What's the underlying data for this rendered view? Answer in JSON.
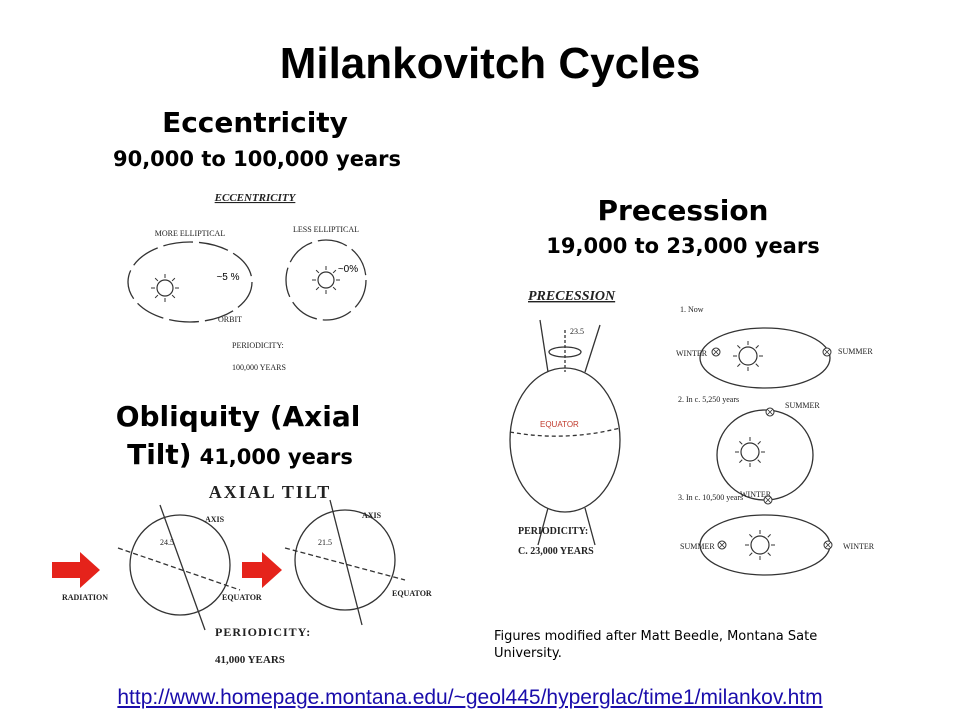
{
  "title": "Milankovitch Cycles",
  "eccentricity": {
    "heading": "Eccentricity",
    "period": "90,000 to 100,000 years",
    "figure": {
      "title": "ECCENTRICITY",
      "left_label": "MORE ELLIPTICAL",
      "right_label": "LESS ELLIPTICAL",
      "left_value": "~5 %",
      "right_value": "~0%",
      "orbit": "ORBIT",
      "periodicity": "PERIODICITY:",
      "years": "100,000 YEARS"
    }
  },
  "obliquity": {
    "heading_line1": "Obliquity (Axial",
    "heading_line2": "Tilt)",
    "period": "41,000 years",
    "figure": {
      "title": "AXIAL TILT",
      "radiation": "RADIATION",
      "globes": [
        {
          "axis": "AXIS",
          "angle": "24.5",
          "equator": "EQUATOR"
        },
        {
          "axis": "AXIS",
          "angle": "21.5",
          "equator": "EQUATOR"
        }
      ],
      "periodicity": "PERIODICITY:",
      "years": "41,000 YEARS"
    }
  },
  "precession": {
    "heading": "Precession",
    "period": "19,000 to 23,000 years",
    "figure": {
      "title": "PRECESSION",
      "angle": "23.5",
      "equator": "EQUATOR",
      "periodicity": "PERIODICITY:",
      "years": "C. 23,000 YEARS",
      "stages": [
        {
          "label": "1. Now",
          "first": "WINTER",
          "second": "SUMMER"
        },
        {
          "label": "2. In c. 5,250 years",
          "first": "SUMMER",
          "second": "WINTER"
        },
        {
          "label": "3. In c. 10,500 years",
          "first": "SUMMER",
          "second": "WINTER"
        }
      ]
    }
  },
  "credit": "Figures modified after Matt Beedle, Montana Sate University.",
  "link": "http://www.homepage.montana.edu/~geol445/hyperglac/time1/milankov.htm"
}
